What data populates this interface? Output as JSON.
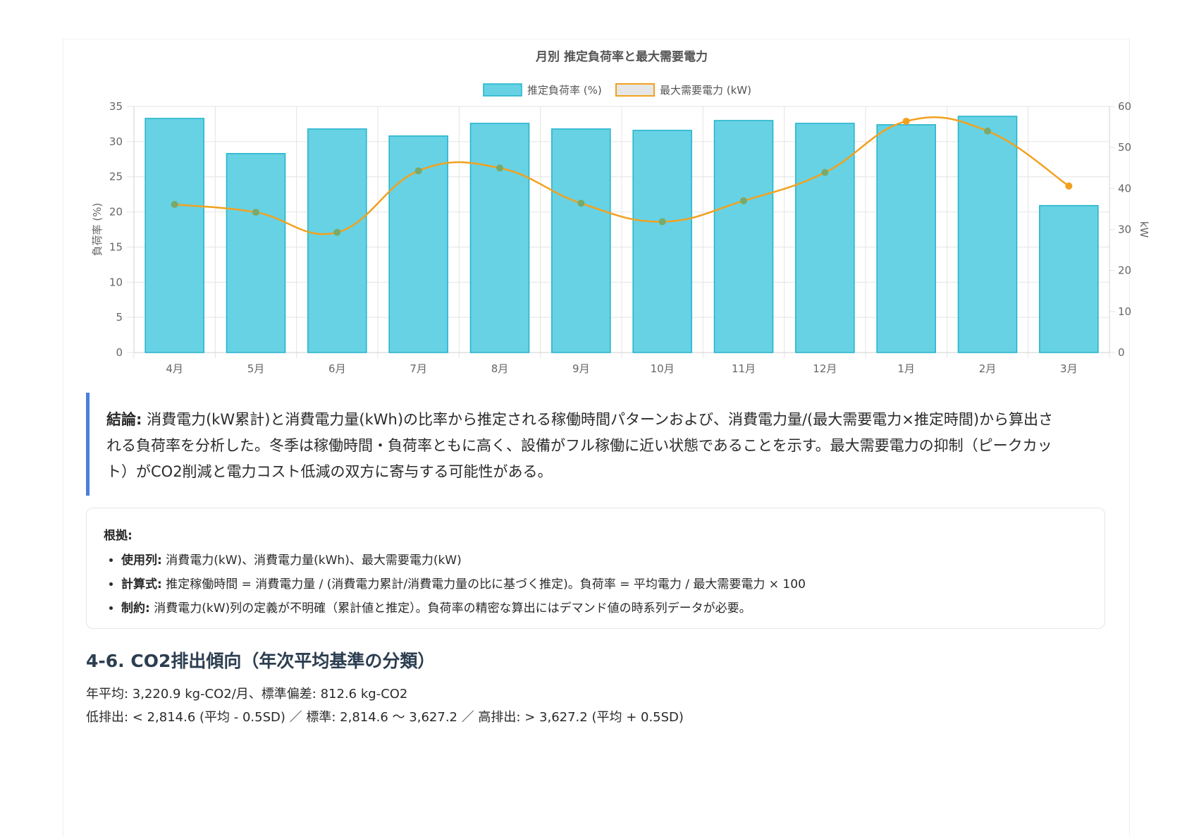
{
  "chart_data": {
    "type": "bar",
    "title": "月別 推定負荷率と最大需要電力",
    "categories": [
      "4月",
      "5月",
      "6月",
      "7月",
      "8月",
      "9月",
      "10月",
      "11月",
      "12月",
      "1月",
      "2月",
      "3月"
    ],
    "series": [
      {
        "name": "推定負荷率 (%)",
        "type": "bar",
        "axis": "left",
        "color": "#67d2e4",
        "border_color": "#22b3cc",
        "values": [
          33.3,
          28.3,
          31.8,
          30.8,
          32.6,
          31.8,
          31.6,
          33.0,
          32.6,
          32.4,
          33.6,
          20.9
        ]
      },
      {
        "name": "最大需要電力 (kW)",
        "type": "line",
        "axis": "right",
        "color": "#f2a11e",
        "point_color": "#7aaa6a",
        "last_point_color": "#f2a11e",
        "values": [
          36.1,
          34.2,
          29.3,
          44.3,
          45.0,
          36.4,
          31.9,
          37.0,
          43.9,
          56.4,
          54.0,
          40.6
        ]
      }
    ],
    "ylabel": "負荷率 (%)",
    "y2label": "kW",
    "ylim": [
      0,
      35
    ],
    "y2lim": [
      0,
      60
    ],
    "yticks": [
      0,
      5,
      10,
      15,
      20,
      25,
      30,
      35
    ],
    "y2ticks": [
      0,
      10,
      20,
      30,
      40,
      50,
      60
    ],
    "grid": true,
    "legend": "top"
  },
  "conclusion": {
    "label": "結論:",
    "text": " 消費電力(kW累計)と消費電力量(kWh)の比率から推定される稼働時間パターンおよび、消費電力量/(最大需要電力×推定時間)から算出される負荷率を分析した。冬季は稼働時間・負荷率ともに高く、設備がフル稼働に近い状態であることを示す。最大需要電力の抑制（ピークカット）がCO2削減と電力コスト低減の双方に寄与する可能性がある。",
    "accent_color": "#4a7fdc"
  },
  "evidence": {
    "heading": "根拠:",
    "items": [
      {
        "label": "使用列:",
        "text": " 消費電力(kW)、消費電力量(kWh)、最大需要電力(kW)"
      },
      {
        "label": "計算式:",
        "text": " 推定稼働時間 = 消費電力量 / (消費電力累計/消費電力量の比に基づく推定)。負荷率 = 平均電力 / 最大需要電力 × 100"
      },
      {
        "label": "制約:",
        "text": " 消費電力(kW)列の定義が不明確（累計値と推定）。負荷率の精密な算出にはデマンド値の時系列データが必要。"
      }
    ]
  },
  "section": {
    "title": "4-6. CO2排出傾向（年次平均基準の分類）",
    "line1": "年平均: 3,220.9 kg-CO2/月、標準偏差: 812.6 kg-CO2",
    "line2": "低排出: < 2,814.6 (平均 - 0.5SD) ／ 標準: 2,814.6 〜 3,627.2 ／ 高排出: > 3,627.2 (平均 + 0.5SD)"
  }
}
